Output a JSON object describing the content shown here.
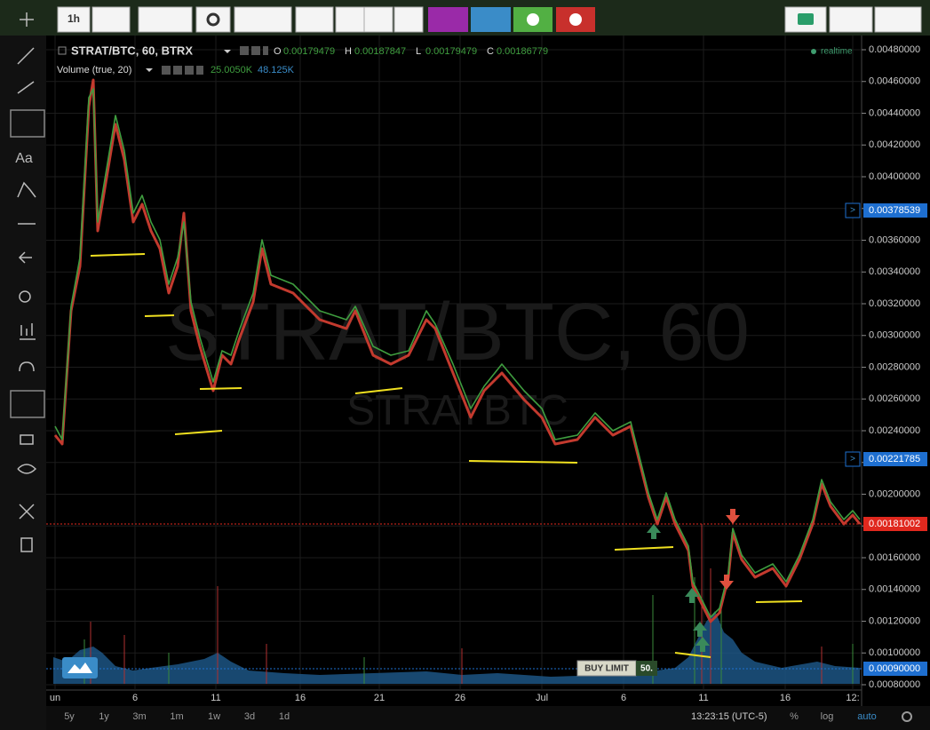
{
  "toolbar": {
    "interval": "1h"
  },
  "legend": {
    "symbol": "STRAT/BTC, 60, BTRX",
    "ohlc": [
      {
        "key": "O",
        "value": "0.00179479"
      },
      {
        "key": "H",
        "value": "0.00187847"
      },
      {
        "key": "L",
        "value": "0.00179479"
      },
      {
        "key": "C",
        "value": "0.00186779"
      }
    ],
    "volume_title": "Volume (true, 20)",
    "volume_values": [
      "25.0050K",
      "48.125K"
    ],
    "status": "realtime"
  },
  "left_toolbar": {
    "text_tool": "Aa"
  },
  "watermark": {
    "line1": "STRAT/BTC, 60",
    "line2": "STRATBTC"
  },
  "price_axis": {
    "labels": [
      "0.00480000",
      "0.00460000",
      "0.00440000",
      "0.00420000",
      "0.00400000",
      "0.00380000",
      "0.00360000",
      "0.00340000",
      "0.00320000",
      "0.00300000",
      "0.00280000",
      "0.00260000",
      "0.00240000",
      "0.00220000",
      "0.00200000",
      "0.00180000",
      "0.00160000",
      "0.00140000",
      "0.00120000",
      "0.00100000",
      "0.00080000"
    ],
    "markers": [
      {
        "prefix": ">",
        "label": "0.00378539",
        "color": "#1e6fd0"
      },
      {
        "prefix": ">",
        "label": "0.00221785",
        "color": "#1e6fd0"
      },
      {
        "label": "0.00181002",
        "color": "#e0281e"
      },
      {
        "label": "0.00090000",
        "color": "#1e6fd0"
      }
    ]
  },
  "time_axis": {
    "labels": [
      "un",
      "6",
      "11",
      "16",
      "21",
      "26",
      "Jul",
      "6",
      "11",
      "16",
      "12:"
    ]
  },
  "order": {
    "label": "BUY LIMIT",
    "quantity": "50."
  },
  "bottom_bar": {
    "ranges": [
      "5y",
      "1y",
      "3m",
      "1m",
      "1w",
      "3d",
      "1d"
    ],
    "clock": "13:23:15 (UTC-5)",
    "options": [
      "%",
      "log",
      "auto"
    ]
  }
}
